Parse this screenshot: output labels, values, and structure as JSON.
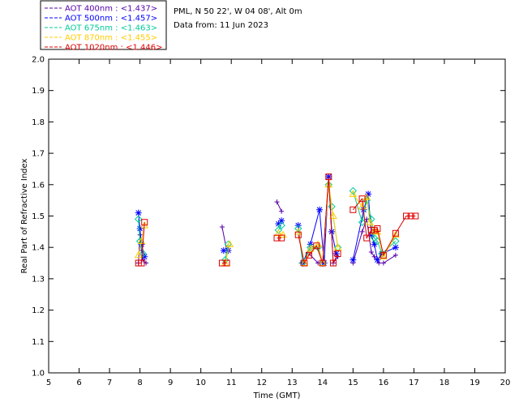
{
  "header": {
    "site_line": "PML, N 50 22', W 04 08', Alt 0m",
    "date_line": "Data from: 11 Jun 2023"
  },
  "chart_data": {
    "type": "line",
    "title": "",
    "xlabel": "Time (GMT)",
    "ylabel": "Real Part of Refractive Index",
    "xlim": [
      5,
      20
    ],
    "ylim": [
      1.0,
      2.0
    ],
    "x_ticks": [
      5,
      6,
      7,
      8,
      9,
      10,
      11,
      12,
      13,
      14,
      15,
      16,
      17,
      18,
      19,
      20
    ],
    "y_ticks": [
      1.0,
      1.1,
      1.2,
      1.3,
      1.4,
      1.5,
      1.6,
      1.7,
      1.8,
      1.9,
      2.0
    ],
    "legend_position": "top-left, outside plot",
    "series": [
      {
        "name": "AOT  400nm : <1.437>",
        "color": "#5500aa",
        "marker": "plus",
        "points": [
          [
            7.95,
            1.35
          ],
          [
            8.0,
            1.44
          ],
          [
            8.05,
            1.39
          ],
          [
            8.1,
            1.36
          ],
          [
            8.2,
            1.35
          ],
          [
            10.7,
            1.465
          ],
          [
            10.85,
            1.39
          ],
          [
            12.5,
            1.545
          ],
          [
            12.65,
            1.515
          ],
          [
            13.3,
            1.35
          ],
          [
            13.55,
            1.38
          ],
          [
            13.85,
            1.35
          ],
          [
            14.0,
            1.35
          ],
          [
            14.2,
            1.625
          ],
          [
            14.35,
            1.35
          ],
          [
            14.5,
            1.37
          ],
          [
            15.0,
            1.35
          ],
          [
            15.3,
            1.45
          ],
          [
            15.45,
            1.49
          ],
          [
            15.6,
            1.385
          ],
          [
            15.7,
            1.37
          ],
          [
            15.85,
            1.35
          ],
          [
            16.0,
            1.35
          ],
          [
            16.4,
            1.375
          ]
        ]
      },
      {
        "name": "AOT  500nm : <1.457>",
        "color": "#0000ff",
        "marker": "star",
        "points": [
          [
            7.95,
            1.51
          ],
          [
            8.0,
            1.46
          ],
          [
            8.05,
            1.41
          ],
          [
            8.15,
            1.37
          ],
          [
            10.75,
            1.39
          ],
          [
            10.9,
            1.39
          ],
          [
            12.55,
            1.475
          ],
          [
            12.65,
            1.485
          ],
          [
            13.2,
            1.47
          ],
          [
            13.35,
            1.35
          ],
          [
            13.6,
            1.41
          ],
          [
            13.9,
            1.52
          ],
          [
            14.05,
            1.35
          ],
          [
            14.2,
            1.625
          ],
          [
            14.3,
            1.45
          ],
          [
            14.45,
            1.38
          ],
          [
            15.0,
            1.36
          ],
          [
            15.35,
            1.52
          ],
          [
            15.5,
            1.57
          ],
          [
            15.6,
            1.44
          ],
          [
            15.7,
            1.41
          ],
          [
            15.8,
            1.36
          ],
          [
            15.95,
            1.38
          ],
          [
            16.4,
            1.4
          ]
        ]
      },
      {
        "name": "AOT  675nm : <1.463>",
        "color": "#00cc99",
        "marker": "diamond",
        "points": [
          [
            7.95,
            1.49
          ],
          [
            8.0,
            1.42
          ],
          [
            8.1,
            1.38
          ],
          [
            10.8,
            1.36
          ],
          [
            10.9,
            1.41
          ],
          [
            12.55,
            1.455
          ],
          [
            12.65,
            1.47
          ],
          [
            13.2,
            1.46
          ],
          [
            13.35,
            1.35
          ],
          [
            13.6,
            1.4
          ],
          [
            13.85,
            1.4
          ],
          [
            14.0,
            1.35
          ],
          [
            14.2,
            1.6
          ],
          [
            14.3,
            1.53
          ],
          [
            14.5,
            1.4
          ],
          [
            15.0,
            1.58
          ],
          [
            15.3,
            1.48
          ],
          [
            15.45,
            1.55
          ],
          [
            15.6,
            1.49
          ],
          [
            15.7,
            1.43
          ],
          [
            15.8,
            1.42
          ],
          [
            15.95,
            1.38
          ],
          [
            16.4,
            1.42
          ]
        ]
      },
      {
        "name": "AOT  870nm : <1.455>",
        "color": "#ffcc00",
        "marker": "triangle",
        "points": [
          [
            7.95,
            1.375
          ],
          [
            8.05,
            1.42
          ],
          [
            8.15,
            1.47
          ],
          [
            10.8,
            1.35
          ],
          [
            10.95,
            1.41
          ],
          [
            12.55,
            1.445
          ],
          [
            12.7,
            1.44
          ],
          [
            13.2,
            1.45
          ],
          [
            13.4,
            1.35
          ],
          [
            13.6,
            1.395
          ],
          [
            13.85,
            1.41
          ],
          [
            14.0,
            1.35
          ],
          [
            14.2,
            1.6
          ],
          [
            14.35,
            1.5
          ],
          [
            14.5,
            1.4
          ],
          [
            15.0,
            1.57
          ],
          [
            15.3,
            1.53
          ],
          [
            15.45,
            1.56
          ],
          [
            15.55,
            1.48
          ],
          [
            15.7,
            1.45
          ],
          [
            15.8,
            1.45
          ],
          [
            16.0,
            1.37
          ],
          [
            16.4,
            1.44
          ]
        ]
      },
      {
        "name": "AOT 1020nm : <1.446>",
        "color": "#dd0000",
        "marker": "square",
        "points": [
          [
            7.95,
            1.35
          ],
          [
            8.05,
            1.35
          ],
          [
            8.15,
            1.48
          ],
          [
            10.7,
            1.35
          ],
          [
            10.85,
            1.35
          ],
          [
            12.5,
            1.43
          ],
          [
            12.65,
            1.43
          ],
          [
            13.2,
            1.44
          ],
          [
            13.4,
            1.35
          ],
          [
            13.55,
            1.375
          ],
          [
            13.8,
            1.405
          ],
          [
            14.0,
            1.35
          ],
          [
            14.2,
            1.625
          ],
          [
            14.35,
            1.35
          ],
          [
            14.5,
            1.38
          ],
          [
            15.0,
            1.52
          ],
          [
            15.3,
            1.555
          ],
          [
            15.45,
            1.43
          ],
          [
            15.6,
            1.455
          ],
          [
            15.7,
            1.455
          ],
          [
            15.8,
            1.46
          ],
          [
            16.0,
            1.375
          ],
          [
            16.4,
            1.445
          ],
          [
            16.75,
            1.5
          ],
          [
            16.9,
            1.5
          ],
          [
            17.05,
            1.5
          ]
        ]
      }
    ]
  }
}
